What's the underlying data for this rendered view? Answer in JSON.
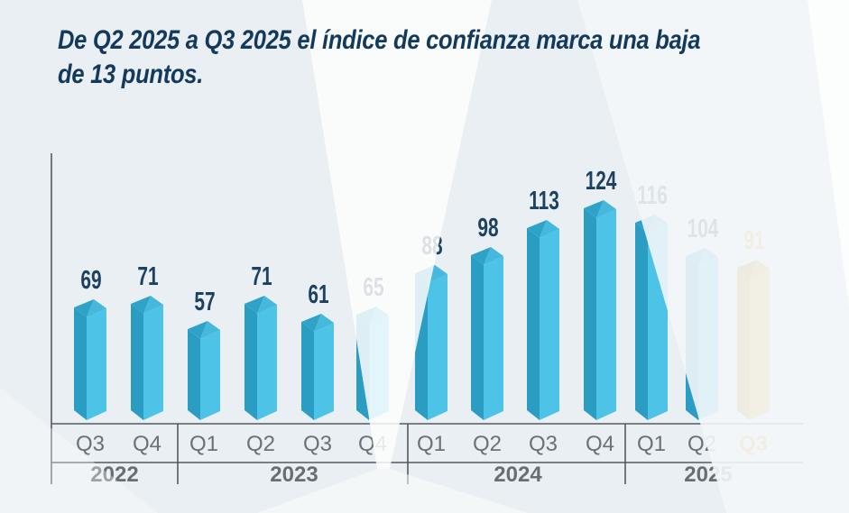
{
  "title": {
    "line1": "De Q2 2025 a Q3 2025 el índice de confianza marca una baja",
    "line2": "de 13 puntos.",
    "full": "De Q2 2025 a Q3 2025 el índice de confianza marca una baja de 13 puntos."
  },
  "chart_data": {
    "type": "bar",
    "title": "De Q2 2025 a Q3 2025 el índice de confianza marca una baja de 13 puntos.",
    "xlabel": "",
    "ylabel": "",
    "grid": false,
    "legend": false,
    "ylim": [
      0,
      150
    ],
    "categories": [
      "Q3 2022",
      "Q4 2022",
      "Q1 2023",
      "Q2 2023",
      "Q3 2023",
      "Q4 2023",
      "Q1 2024",
      "Q2 2024",
      "Q3 2024",
      "Q4 2024",
      "Q1 2025",
      "Q2 2025",
      "Q3 2025"
    ],
    "values": [
      69,
      71,
      57,
      71,
      61,
      65,
      88,
      98,
      113,
      124,
      116,
      104,
      91
    ],
    "groups": [
      {
        "year": "2022",
        "quarters": [
          "Q3",
          "Q4"
        ],
        "values": [
          69,
          71
        ]
      },
      {
        "year": "2023",
        "quarters": [
          "Q1",
          "Q2",
          "Q3",
          "Q4"
        ],
        "values": [
          57,
          71,
          61,
          65
        ]
      },
      {
        "year": "2024",
        "quarters": [
          "Q1",
          "Q2",
          "Q3",
          "Q4"
        ],
        "values": [
          88,
          98,
          113,
          124
        ]
      },
      {
        "year": "2025",
        "quarters": [
          "Q1",
          "Q2",
          "Q3"
        ],
        "values": [
          116,
          104,
          91
        ]
      }
    ],
    "highlight": {
      "category": "Q3 2025",
      "quarter_label": "Q3",
      "value": 91
    }
  },
  "colors": {
    "background": "#e9eff2",
    "title_text": "#133a5c",
    "value_label": "#1d4160",
    "bar_front": "#4ec3e8",
    "bar_side": "#2b9dc3",
    "bar_top_dark": "#2fa3c7",
    "bar_top_light": "#45b8dc",
    "highlight_front": "#ecb62c",
    "highlight_side": "#c18c10",
    "highlight_top_dark": "#b8860e",
    "highlight_top_light": "#d8a318",
    "highlight_label": "#e2a51a",
    "axis_line": "#525a61",
    "tick_label": "#6b7277",
    "year_label": "#686f73"
  }
}
